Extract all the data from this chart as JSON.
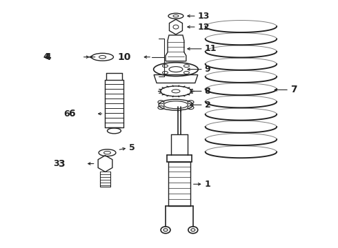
{
  "bg_color": "#ffffff",
  "line_color": "#222222",
  "label_color": "#000000",
  "figsize": [
    4.9,
    3.6
  ],
  "dpi": 100
}
